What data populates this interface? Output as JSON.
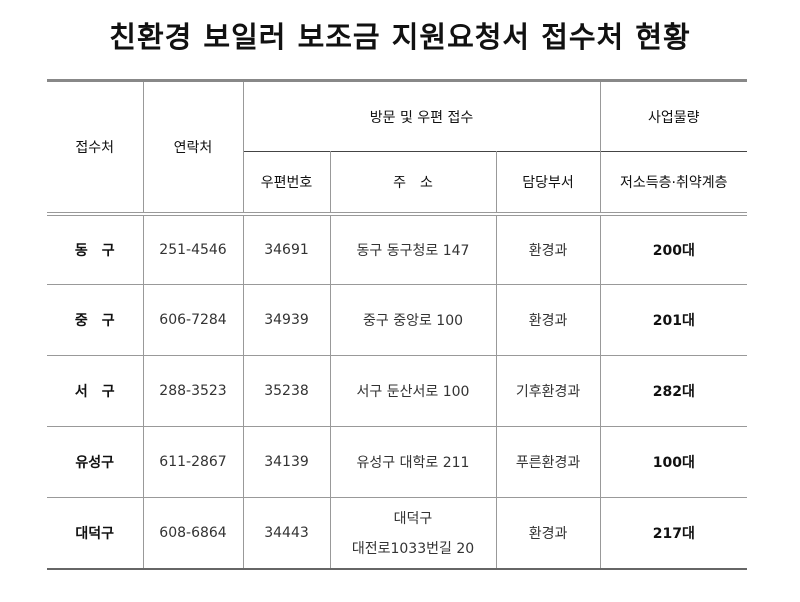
{
  "title": "친환경 보일러 보조금 지원요청서 접수처 현황",
  "headers": {
    "office": "접수처",
    "contact": "연락처",
    "visit_mail": "방문 및 우편 접수",
    "volume": "사업물량",
    "postal": "우편번호",
    "address": "주　소",
    "dept": "담당부서",
    "low_income": "저소득층·취약계층"
  },
  "rows": [
    {
      "office": "동　구",
      "contact": "251-4546",
      "postal": "34691",
      "address": "동구 동구청로 147",
      "address2": "",
      "dept": "환경과",
      "volume": "200대"
    },
    {
      "office": "중　구",
      "contact": "606-7284",
      "postal": "34939",
      "address": "중구 중앙로 100",
      "address2": "",
      "dept": "환경과",
      "volume": "201대"
    },
    {
      "office": "서　구",
      "contact": "288-3523",
      "postal": "35238",
      "address": "서구 둔산서로 100",
      "address2": "",
      "dept": "기후환경과",
      "volume": "282대"
    },
    {
      "office": "유성구",
      "contact": "611-2867",
      "postal": "34139",
      "address": "유성구 대학로 211",
      "address2": "",
      "dept": "푸른환경과",
      "volume": "100대"
    },
    {
      "office": "대덕구",
      "contact": "608-6864",
      "postal": "34443",
      "address": "대덕구",
      "address2": "대전로1033번길 20",
      "dept": "환경과",
      "volume": "217대"
    }
  ]
}
